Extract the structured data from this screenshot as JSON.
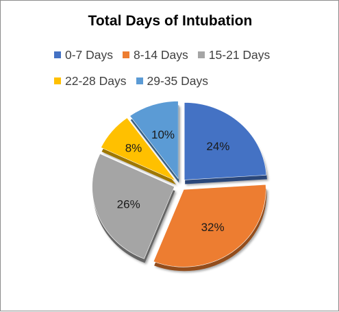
{
  "chart_data": {
    "type": "pie",
    "title": "Total Days  of Intubation",
    "categories": [
      "0-7 Days",
      "8-14 Days",
      "15-21 Days",
      "22-28 Days",
      "29-35 Days"
    ],
    "values": [
      24,
      32,
      26,
      8,
      10
    ],
    "labels": [
      "24%",
      "32%",
      "26%",
      "8%",
      "10%"
    ],
    "colors": [
      "#4472C4",
      "#ED7D31",
      "#A5A5A5",
      "#FFC000",
      "#5B9BD5"
    ],
    "exploded": true,
    "legend_position": "top"
  }
}
